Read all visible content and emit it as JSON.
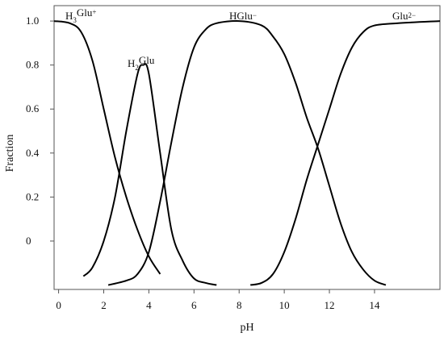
{
  "chart_data": {
    "type": "line",
    "xlabel": "pH",
    "ylabel": "Fraction",
    "x_ticks": [
      {
        "value": 0,
        "label": "0"
      },
      {
        "value": 2,
        "label": "2"
      },
      {
        "value": 4,
        "label": "4"
      },
      {
        "value": 6,
        "label": "6"
      },
      {
        "value": 8,
        "label": "8"
      },
      {
        "value": 10,
        "label": "10"
      },
      {
        "value": 12,
        "label": "12"
      },
      {
        "value": 14,
        "label": "14"
      }
    ],
    "y_ticks": [
      {
        "value": 1.0,
        "label": "1.0"
      },
      {
        "value": 0.8,
        "label": "0.8"
      },
      {
        "value": 0.6,
        "label": "0.6"
      },
      {
        "value": 0.4,
        "label": "0.4"
      },
      {
        "value": 0.2,
        "label": "0.2"
      },
      {
        "value": 0.0,
        "label": "0"
      }
    ],
    "xlim": [
      -0.2,
      16.9
    ],
    "ylim": [
      -0.22,
      1.07
    ],
    "grid": false,
    "legend": "none",
    "series": [
      {
        "name": "H3Glu+",
        "name_main": "H",
        "name_sub": "3",
        "name_rest": "Glu",
        "name_sup": "+",
        "x": [
          -0.2,
          0.5,
          1.0,
          1.5,
          2.0,
          2.5,
          3.0,
          3.5,
          4.0,
          4.5
        ],
        "y": [
          1.0,
          0.99,
          0.95,
          0.82,
          0.6,
          0.38,
          0.2,
          0.05,
          -0.07,
          -0.15
        ]
      },
      {
        "name": "H2Glu",
        "name_main": "H",
        "name_sub": "2",
        "name_rest": "Glu",
        "name_sup": "",
        "x": [
          1.1,
          1.5,
          2.0,
          2.5,
          3.0,
          3.5,
          3.75,
          4.0,
          4.5,
          5.0,
          5.5,
          6.0,
          6.5,
          7.0
        ],
        "y": [
          -0.16,
          -0.12,
          0.0,
          0.2,
          0.5,
          0.76,
          0.8,
          0.76,
          0.4,
          0.05,
          -0.09,
          -0.17,
          -0.19,
          -0.2
        ]
      },
      {
        "name": "HGlu−",
        "name_main": "HGlu",
        "name_sub": "",
        "name_rest": "",
        "name_sup": "−",
        "x": [
          2.2,
          3.0,
          3.5,
          4.0,
          4.5,
          5.0,
          5.5,
          6.0,
          6.5,
          7.0,
          8.0,
          9.0,
          9.5,
          10.0,
          10.5,
          11.0,
          11.5,
          12.0,
          12.5,
          13.0,
          13.5,
          14.0,
          14.5
        ],
        "y": [
          -0.2,
          -0.18,
          -0.15,
          -0.05,
          0.18,
          0.45,
          0.7,
          0.88,
          0.96,
          0.99,
          1.0,
          0.98,
          0.93,
          0.85,
          0.72,
          0.56,
          0.42,
          0.25,
          0.08,
          -0.05,
          -0.13,
          -0.18,
          -0.2
        ]
      },
      {
        "name": "Glu2−",
        "name_main": "Glu",
        "name_sub": "",
        "name_rest": "",
        "name_sup": "2−",
        "x": [
          8.5,
          9.0,
          9.5,
          10.0,
          10.5,
          11.0,
          11.5,
          12.0,
          12.5,
          13.0,
          13.5,
          14.0,
          15.0,
          16.9
        ],
        "y": [
          -0.2,
          -0.19,
          -0.15,
          -0.05,
          0.1,
          0.28,
          0.44,
          0.6,
          0.76,
          0.88,
          0.95,
          0.98,
          0.99,
          1.0
        ]
      }
    ]
  }
}
